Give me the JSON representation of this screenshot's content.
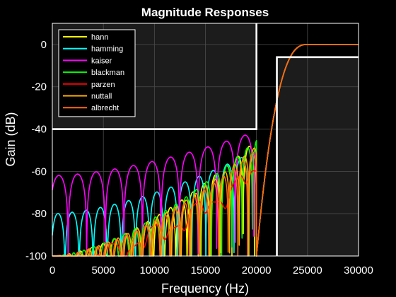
{
  "chart_data": {
    "type": "line",
    "title": "Magnitude Responses",
    "xlabel": "Frequency (Hz)",
    "ylabel": "Gain (dB)",
    "xlim": [
      0,
      30000
    ],
    "ylim": [
      -100,
      10
    ],
    "xticks": [
      0,
      5000,
      10000,
      15000,
      20000,
      25000,
      30000
    ],
    "yticks": [
      -100,
      -80,
      -60,
      -40,
      -20,
      0
    ],
    "grid": true,
    "legend_position": "top-left",
    "background": "#000000",
    "mask_color": "#ffffff",
    "shade_color": "#1c1c1c",
    "stopband": {
      "edge_hz": 20000,
      "attenuation_db": -40
    },
    "passband": {
      "edge_hz": 22000,
      "ripple_db": -6
    },
    "transition": {
      "start_hz": 20000,
      "end_hz": 25000
    },
    "series": [
      {
        "name": "hann",
        "color": "#ffff00",
        "lobe_period_hz": 1100,
        "floor_db": [
          -100,
          -45
        ]
      },
      {
        "name": "hamming",
        "color": "#00ffff",
        "lobe_period_hz": 1380,
        "floor_db": [
          -80,
          -50
        ]
      },
      {
        "name": "kaiser",
        "color": "#ff00ff",
        "lobe_period_hz": 1820,
        "floor_db": [
          -62,
          -41
        ]
      },
      {
        "name": "blackman",
        "color": "#00ff00",
        "lobe_period_hz": 1000,
        "floor_db": [
          -100,
          -45
        ]
      },
      {
        "name": "parzen",
        "color": "#ff0000",
        "lobe_period_hz": 900,
        "floor_db": [
          -99,
          -55
        ]
      },
      {
        "name": "nuttall",
        "color": "#ffb000",
        "lobe_period_hz": 950,
        "floor_db": [
          -100,
          -48
        ]
      },
      {
        "name": "albrecht",
        "color": "#ff6a10",
        "lobe_period_hz": 950,
        "floor_db": [
          -100,
          -50
        ]
      }
    ]
  }
}
